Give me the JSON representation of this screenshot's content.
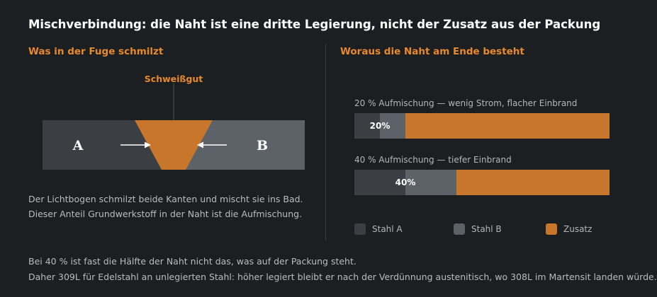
{
  "title": "Mischverbindung: die Naht ist eine dritte Legierung, nicht der Zusatz aus der Packung",
  "left": {
    "heading": "Was in der Fuge schmilzt",
    "weld_label": "Schweißgut",
    "plate_a": "A",
    "plate_b": "B",
    "text_lines": [
      "Der Lichtbogen schmilzt beide Kanten und mischt sie ins Bad.",
      "Dieser Anteil Grundwerkstoff in der Naht ist die Aufmischung."
    ]
  },
  "right": {
    "heading": "Woraus die Naht am Ende besteht"
  },
  "colors": {
    "stahl_a": "#3b3f44",
    "stahl_b": "#5c6268",
    "zusatz": "#c8762c",
    "heading": "#e8892c"
  },
  "chart_data": {
    "type": "bar",
    "orientation": "horizontal-stacked",
    "unit": "%",
    "xlim": [
      0,
      100
    ],
    "bars": [
      {
        "label": "20 % Aufmischung — wenig Strom, flacher Einbrand",
        "value_label": "20%",
        "stahl_a": 10,
        "stahl_b": 10,
        "zusatz": 80
      },
      {
        "label": "40 % Aufmischung — tiefer Einbrand",
        "value_label": "40%",
        "stahl_a": 20,
        "stahl_b": 20,
        "zusatz": 60
      }
    ],
    "legend": [
      "Stahl A",
      "Stahl B",
      "Zusatz"
    ],
    "legend_position": "bottom"
  },
  "footer": [
    "Bei 40 % ist fast die Hälfte der Naht nicht das, was auf der Packung steht.",
    "Daher 309L für Edelstahl an unlegierten Stahl: höher legiert bleibt er nach der Verdünnung austenitisch, wo 308L im Martensit landen würde."
  ]
}
